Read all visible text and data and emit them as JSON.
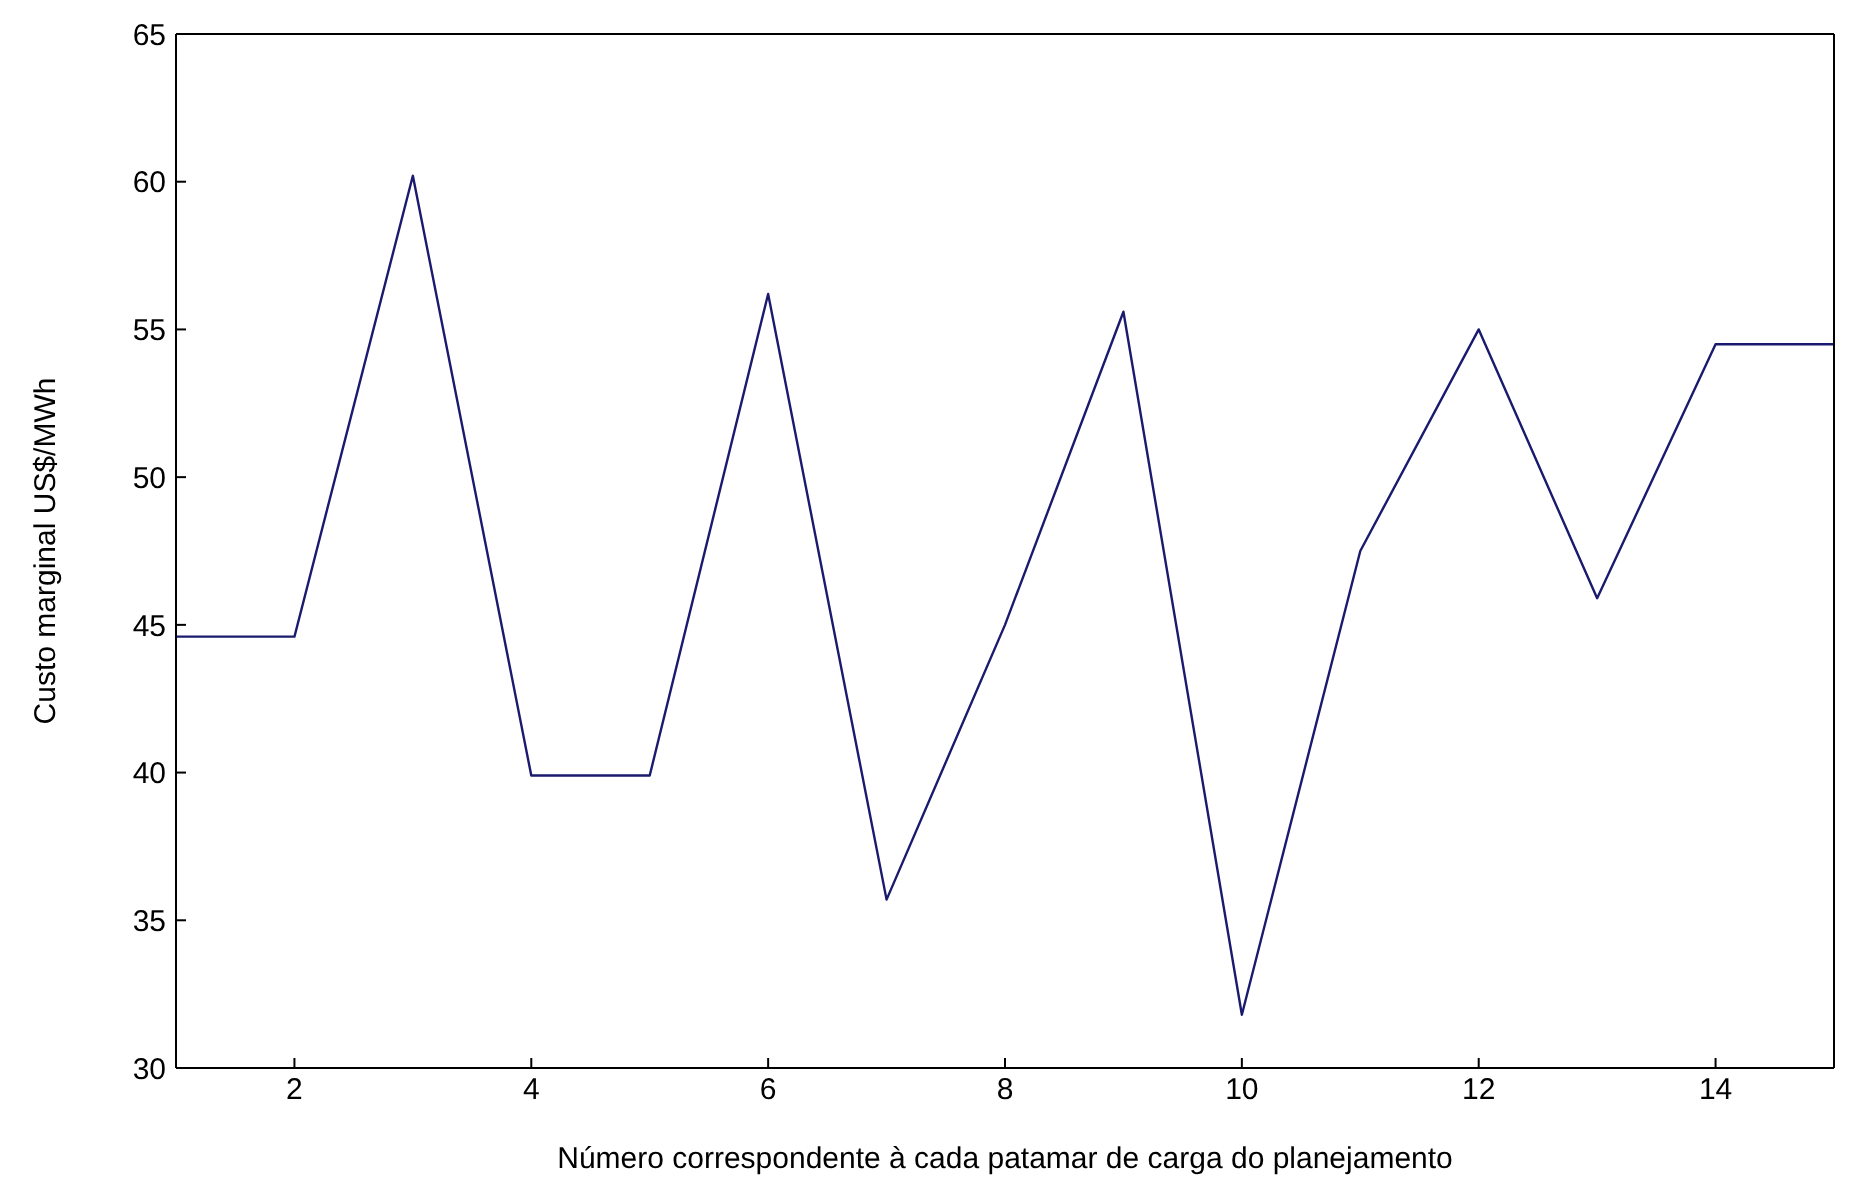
{
  "chart_data": {
    "type": "line",
    "xlabel": "Número correspondente à cada patamar de carga do planejamento",
    "ylabel": "Custo marginal US$/MWh",
    "x": [
      1,
      2,
      3,
      4,
      5,
      6,
      7,
      8,
      9,
      10,
      11,
      12,
      13,
      14,
      15
    ],
    "series": [
      {
        "color": "#1a1a6e",
        "values": [
          44.6,
          44.6,
          60.2,
          39.9,
          39.9,
          56.2,
          35.7,
          45,
          55.6,
          31.8,
          47.5,
          55,
          45.9,
          54.5,
          54.5
        ]
      }
    ],
    "xlim": [
      1,
      15
    ],
    "xticks": [
      2,
      4,
      6,
      8,
      10,
      12,
      14
    ],
    "ylim": [
      30,
      65
    ],
    "yticks": [
      30,
      35,
      40,
      45,
      50,
      55,
      60,
      65
    ],
    "grid": false,
    "marker": "none",
    "line_style": "solid"
  }
}
